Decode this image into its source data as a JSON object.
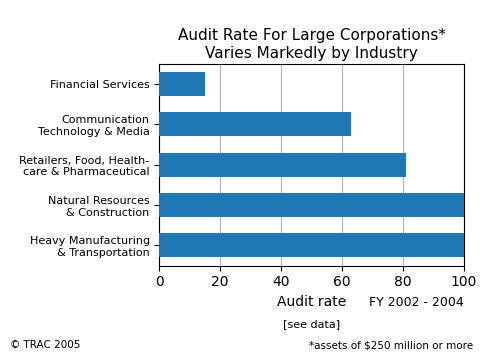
{
  "chart_data": {
    "type": "bar",
    "orientation": "horizontal",
    "title": "Audit Rate For Large Corporations*\nVaries Markedly by Industry",
    "categories": [
      "Financial Services",
      "Communication\nTechnology & Media",
      "Retailers, Food, Health-\ncare & Pharmaceutical",
      "Natural Resources\n& Construction",
      "Heavy Manufacturing\n& Transportation"
    ],
    "values": [
      15,
      63,
      81,
      100,
      100
    ],
    "xlabel": "Audit rate",
    "annotations": [
      "FY 2002 - 2004",
      "[see data]",
      "© TRAC 2005",
      "*assets of $250 million or more"
    ],
    "xlim": [
      0,
      100
    ],
    "xticks": [
      0,
      20,
      40,
      60,
      80,
      100
    ],
    "grid": true
  }
}
